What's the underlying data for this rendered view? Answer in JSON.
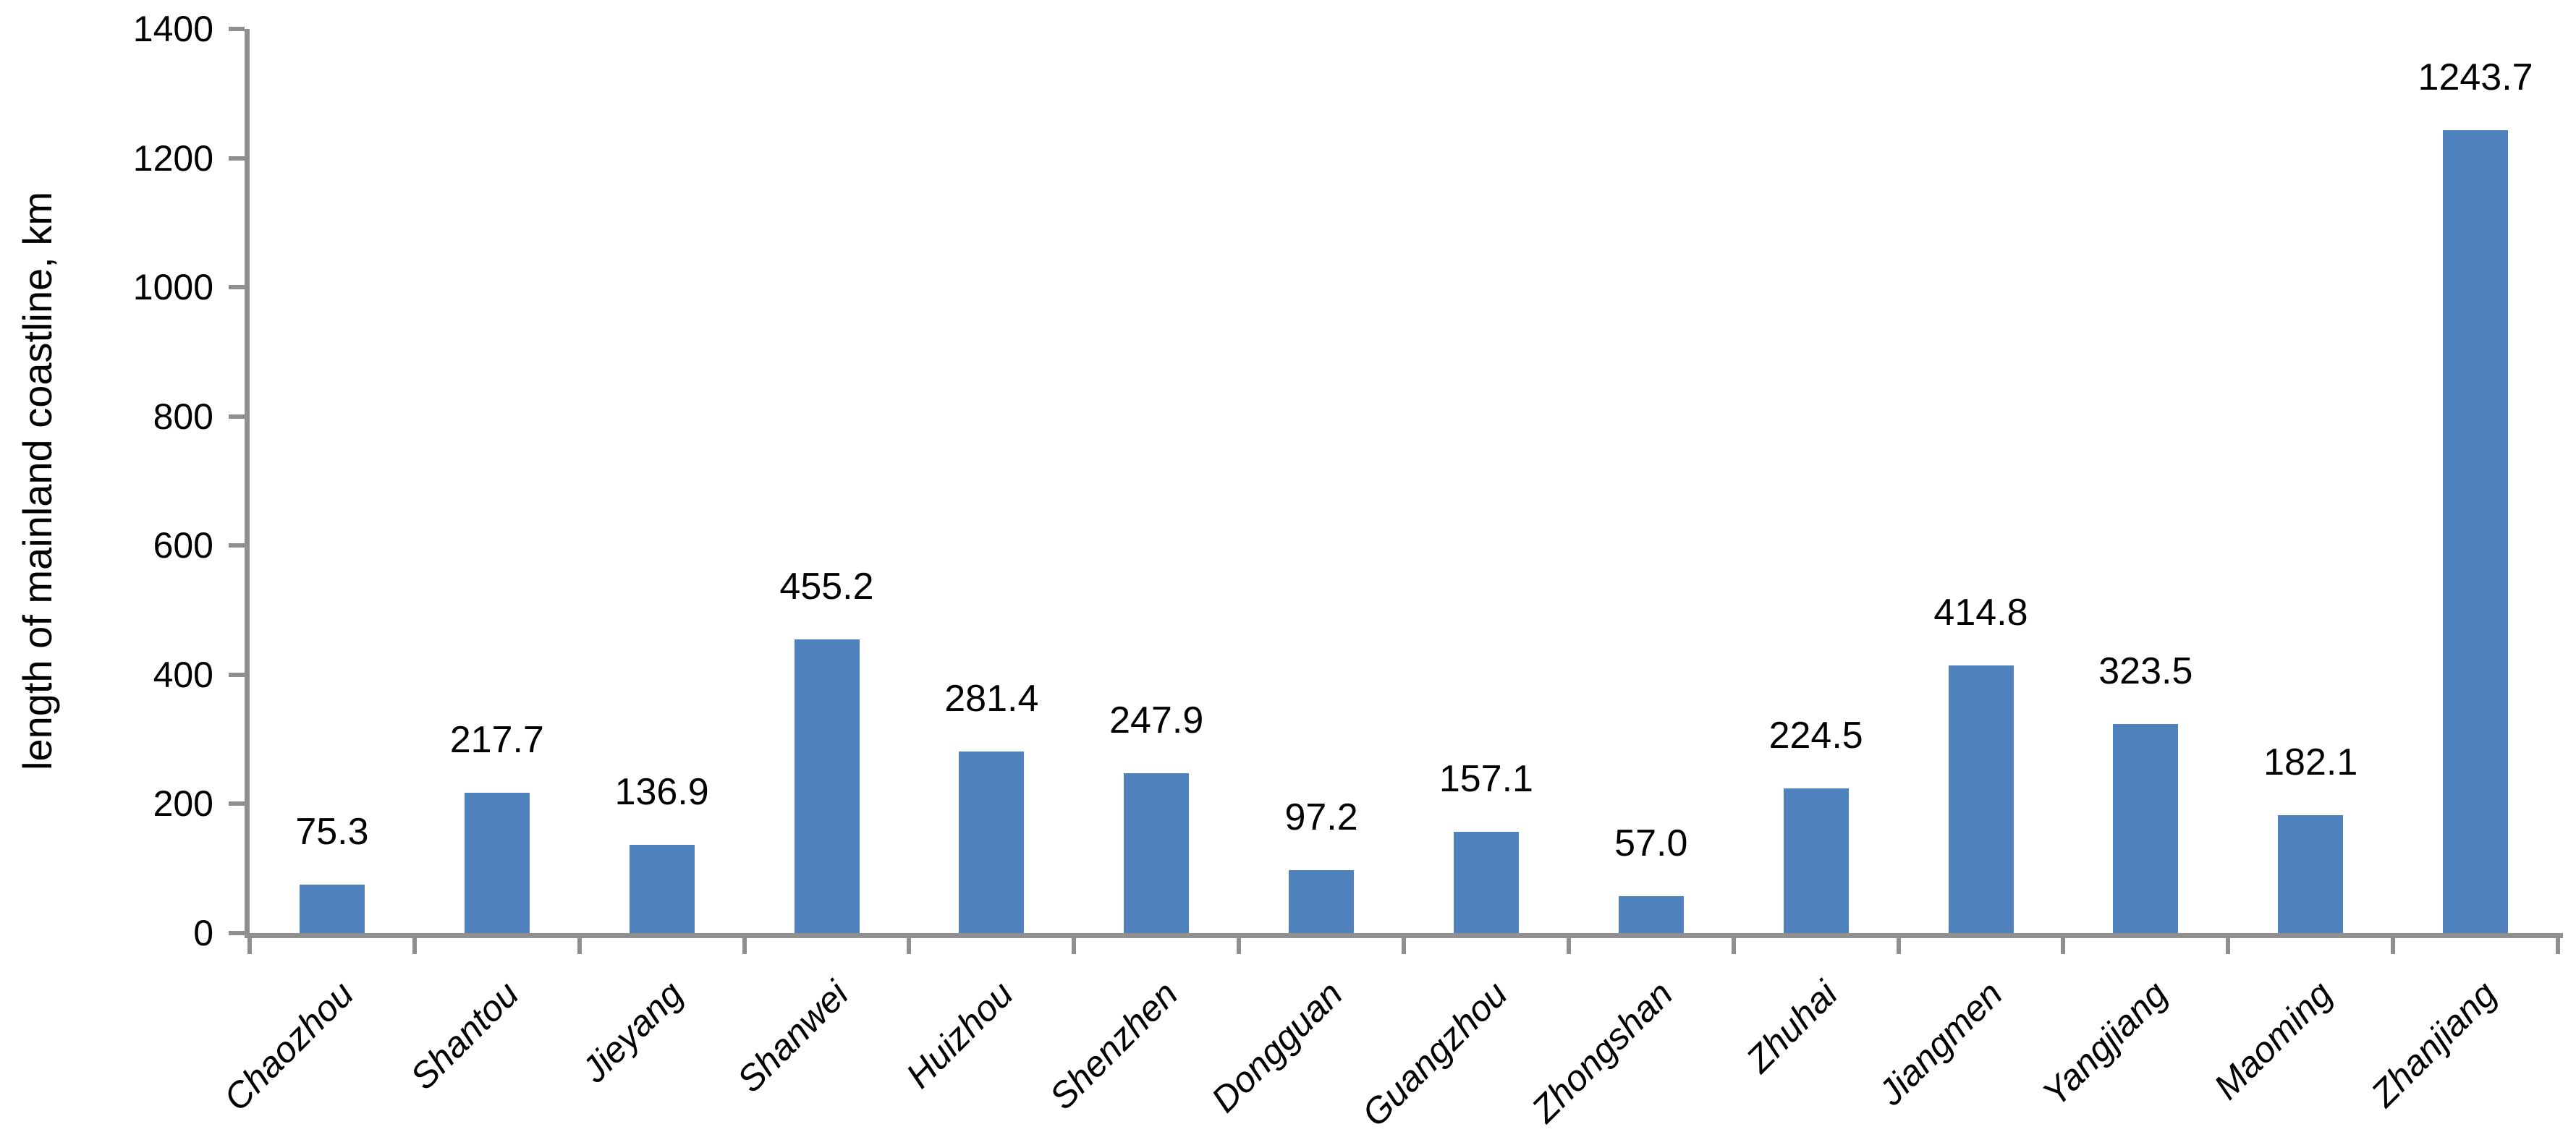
{
  "chart_data": {
    "type": "bar",
    "title": "",
    "ylabel": "length of mainland coastline, km",
    "xlabel": "",
    "categories": [
      "Chaozhou",
      "Shantou",
      "Jieyang",
      "Shanwei",
      "Huizhou",
      "Shenzhen",
      "Dongguan",
      "Guangzhou",
      "Zhongshan",
      "Zhuhai",
      "Jiangmen",
      "Yangjiang",
      "Maoming",
      "Zhanjiang"
    ],
    "values": [
      75.3,
      217.7,
      136.9,
      455.2,
      281.4,
      247.9,
      97.2,
      157.1,
      57.0,
      224.5,
      414.8,
      323.5,
      182.1,
      1243.7
    ],
    "value_labels": [
      "75.3",
      "217.7",
      "136.9",
      "455.2",
      "281.4",
      "247.9",
      "97.2",
      "157.1",
      "57.0",
      "224.5",
      "414.8",
      "323.5",
      "182.1",
      "1243.7"
    ],
    "ylim": [
      0,
      1400
    ],
    "yticks": [
      0,
      200,
      400,
      600,
      800,
      1000,
      1200,
      1400
    ],
    "grid": false,
    "legend": null,
    "bar_color": "#4f81bd",
    "axis_color": "#8f8f8f",
    "label_color": "#000000"
  }
}
